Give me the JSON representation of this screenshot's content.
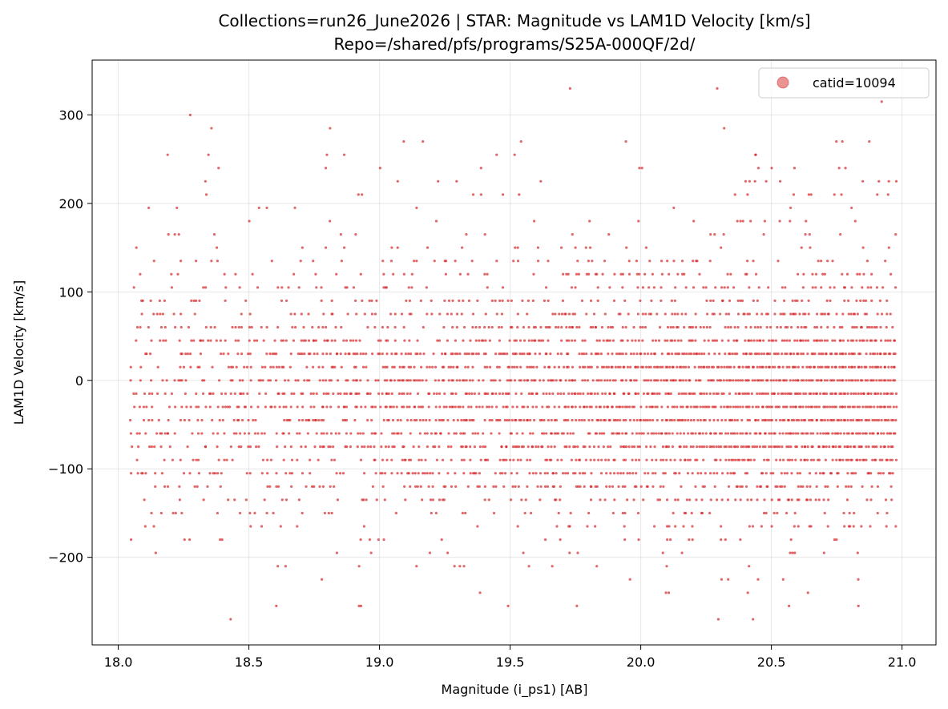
{
  "chart_data": {
    "type": "scatter",
    "title": "Collections=run26_June2026  |  STAR: Magnitude vs LAM1D Velocity [km/s]",
    "subtitle": "Repo=/shared/pfs/programs/S25A-000QF/2d/",
    "xlabel": "Magnitude (i_ps1) [AB]",
    "ylabel": "LAM1D Velocity [km/s]",
    "xlim": [
      17.9,
      21.13
    ],
    "ylim": [
      -299,
      362
    ],
    "xticks": [
      18.0,
      18.5,
      19.0,
      19.5,
      20.0,
      20.5,
      21.0
    ],
    "xtick_labels": [
      "18.0",
      "18.5",
      "19.0",
      "19.5",
      "20.0",
      "20.5",
      "21.0"
    ],
    "yticks": [
      -200,
      -100,
      0,
      100,
      200,
      300
    ],
    "ytick_labels": [
      "−200",
      "−100",
      "0",
      "100",
      "200",
      "300"
    ],
    "grid": true,
    "legend_position": "top-right",
    "x_range_of_points": [
      18.05,
      20.98
    ],
    "velocity_step_kms": 15,
    "series": [
      {
        "name": "catid=10094",
        "color": "#d62728",
        "marker": "circle",
        "alpha": 0.7,
        "velocity_levels": [
          {
            "v": 330,
            "density": 0.004
          },
          {
            "v": 315,
            "density": 0.008
          },
          {
            "v": 300,
            "density": 0.012
          },
          {
            "v": 285,
            "density": 0.018
          },
          {
            "v": 270,
            "density": 0.022
          },
          {
            "v": 255,
            "density": 0.03
          },
          {
            "v": 240,
            "density": 0.035
          },
          {
            "v": 225,
            "density": 0.04
          },
          {
            "v": 210,
            "density": 0.05
          },
          {
            "v": 195,
            "density": 0.06
          },
          {
            "v": 180,
            "density": 0.08
          },
          {
            "v": 165,
            "density": 0.1
          },
          {
            "v": 150,
            "density": 0.12
          },
          {
            "v": 135,
            "density": 0.16
          },
          {
            "v": 120,
            "density": 0.2
          },
          {
            "v": 105,
            "density": 0.28
          },
          {
            "v": 90,
            "density": 0.36
          },
          {
            "v": 75,
            "density": 0.48
          },
          {
            "v": 60,
            "density": 0.6
          },
          {
            "v": 45,
            "density": 0.74
          },
          {
            "v": 30,
            "density": 0.86
          },
          {
            "v": 15,
            "density": 0.95
          },
          {
            "v": 0,
            "density": 1.0
          },
          {
            "v": -15,
            "density": 1.0
          },
          {
            "v": -30,
            "density": 1.0
          },
          {
            "v": -45,
            "density": 0.96
          },
          {
            "v": -60,
            "density": 0.92
          },
          {
            "v": -75,
            "density": 0.84
          },
          {
            "v": -90,
            "density": 0.72
          },
          {
            "v": -105,
            "density": 0.58
          },
          {
            "v": -120,
            "density": 0.44
          },
          {
            "v": -135,
            "density": 0.32
          },
          {
            "v": -150,
            "density": 0.22
          },
          {
            "v": -165,
            "density": 0.15
          },
          {
            "v": -180,
            "density": 0.1
          },
          {
            "v": -195,
            "density": 0.07
          },
          {
            "v": -210,
            "density": 0.05
          },
          {
            "v": -225,
            "density": 0.035
          },
          {
            "v": -240,
            "density": 0.03
          },
          {
            "v": -255,
            "density": 0.02
          },
          {
            "v": -270,
            "density": 0.012
          }
        ]
      }
    ]
  }
}
